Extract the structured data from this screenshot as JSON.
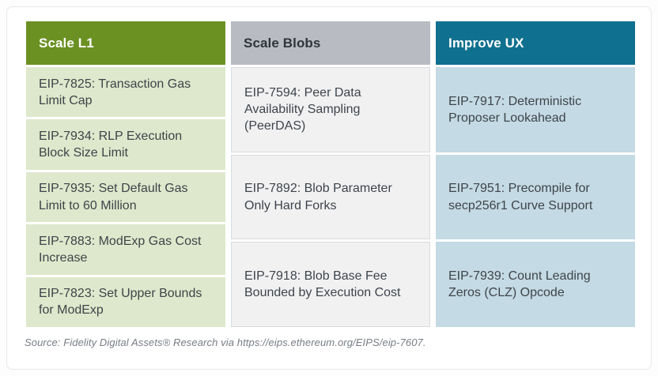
{
  "chart_data": {
    "type": "table",
    "description": "Ethereum Improvement Proposals grouped by goal",
    "legend_position": "none",
    "columns": [
      {
        "header": "Scale L1",
        "header_bg": "#6b9123",
        "header_text_color": "#ffffff",
        "cell_bg": "#dee8cc",
        "items": [
          "EIP-7825: Transaction Gas Limit Cap",
          "EIP-7934: RLP Execution Block Size Limit",
          "EIP-7935: Set Default Gas Limit to 60 Million",
          "EIP-7883: ModExp Gas Cost Increase",
          "EIP-7823: Set Upper Bounds for ModExp"
        ]
      },
      {
        "header": "Scale Blobs",
        "header_bg": "#b8bcc2",
        "header_text_color": "#30353b",
        "cell_bg": "#f1f1f2",
        "items": [
          "EIP-7594: Peer Data Availability Sampling (PeerDAS)",
          "EIP-7892: Blob Parameter Only Hard Forks",
          "EIP-7918: Blob Base Fee Bounded by Execution Cost"
        ]
      },
      {
        "header": "Improve UX",
        "header_bg": "#10708f",
        "header_text_color": "#ffffff",
        "cell_bg": "#c4dae4",
        "items": [
          "EIP-7917: Deterministic Proposer Lookahead",
          "EIP-7951: Precompile for secp256r1 Curve Support",
          "EIP-7939: Count Leading Zeros (CLZ) Opcode"
        ]
      }
    ],
    "source": "Source: Fidelity Digital Assets® Research via https://eips.ethereum.org/EIPS/eip-7607."
  }
}
